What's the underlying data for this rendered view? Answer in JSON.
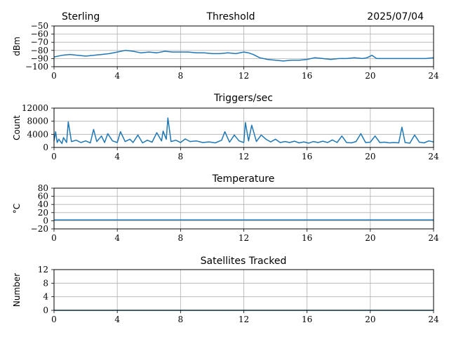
{
  "header": {
    "station": "Sterling",
    "date": "2025/07/04"
  },
  "colors": {
    "series": "#1f77b4",
    "grid": "#b0b0b0"
  },
  "chart_data": [
    {
      "type": "line",
      "title": "Threshold",
      "ylabel": "dBm",
      "xlabel": "",
      "xlim": [
        0,
        24
      ],
      "ylim": [
        -100,
        -50
      ],
      "xticks": [
        0,
        4,
        8,
        12,
        16,
        20,
        24
      ],
      "yticks": [
        -100,
        -90,
        -80,
        -70,
        -60,
        -50
      ],
      "ytick_labels": [
        "−100",
        "−90",
        "−80",
        "−70",
        "−60",
        "−50"
      ],
      "grid": true,
      "series": [
        {
          "x": [
            0,
            0.5,
            1,
            1.5,
            2,
            2.5,
            3,
            3.5,
            4,
            4.5,
            5,
            5.5,
            6,
            6.5,
            7,
            7.5,
            8,
            8.5,
            9,
            9.5,
            10,
            10.5,
            11,
            11.5,
            12,
            12.3,
            12.6,
            13,
            13.5,
            14,
            14.5,
            15,
            15.5,
            16,
            16.5,
            17,
            17.5,
            18,
            18.5,
            19,
            19.5,
            19.8,
            20.1,
            20.4,
            21,
            21.5,
            22,
            22.5,
            23,
            23.5,
            24
          ],
          "values": [
            -88,
            -86,
            -85,
            -86,
            -87,
            -86,
            -85,
            -84,
            -82,
            -80,
            -81,
            -83,
            -82,
            -83,
            -81,
            -82,
            -82,
            -82,
            -83,
            -83,
            -84,
            -84,
            -83,
            -84,
            -82,
            -83,
            -85,
            -89,
            -91,
            -92,
            -93,
            -92,
            -92,
            -91,
            -89,
            -90,
            -91,
            -90,
            -90,
            -89,
            -90,
            -89,
            -86,
            -90,
            -90,
            -90,
            -90,
            -90,
            -90,
            -90,
            -89
          ]
        }
      ]
    },
    {
      "type": "line",
      "title": "Triggers/sec",
      "ylabel": "Count",
      "xlabel": "",
      "xlim": [
        0,
        24
      ],
      "ylim": [
        0,
        12000
      ],
      "xticks": [
        0,
        4,
        8,
        12,
        16,
        20,
        24
      ],
      "yticks": [
        0,
        4000,
        8000,
        12000
      ],
      "ytick_labels": [
        "0",
        "4000",
        "8000",
        "12000"
      ],
      "grid": true,
      "series": [
        {
          "x": [
            0,
            0.1,
            0.2,
            0.3,
            0.5,
            0.6,
            0.8,
            0.9,
            1.1,
            1.4,
            1.7,
            2.0,
            2.3,
            2.5,
            2.7,
            3.0,
            3.2,
            3.4,
            3.7,
            4.0,
            4.2,
            4.5,
            4.8,
            5.0,
            5.3,
            5.6,
            5.9,
            6.2,
            6.5,
            6.8,
            6.9,
            7.1,
            7.2,
            7.4,
            7.7,
            8.0,
            8.3,
            8.6,
            9.0,
            9.4,
            9.8,
            10.2,
            10.6,
            10.8,
            11.1,
            11.4,
            11.7,
            12.0,
            12.1,
            12.3,
            12.5,
            12.8,
            13.1,
            13.4,
            13.7,
            14.0,
            14.3,
            14.6,
            14.9,
            15.2,
            15.5,
            15.8,
            16.1,
            16.4,
            16.7,
            17.0,
            17.3,
            17.6,
            17.9,
            18.2,
            18.5,
            18.8,
            19.1,
            19.4,
            19.7,
            20.0,
            20.3,
            20.6,
            20.9,
            21.2,
            21.5,
            21.8,
            22.0,
            22.2,
            22.5,
            22.8,
            23.1,
            23.4,
            23.7,
            24.0
          ],
          "values": [
            2000,
            4800,
            1500,
            2500,
            1200,
            3000,
            1500,
            7800,
            1800,
            2200,
            1500,
            2000,
            1400,
            5500,
            1800,
            3500,
            1500,
            4200,
            2000,
            1500,
            4800,
            1800,
            2500,
            1500,
            3800,
            1400,
            2200,
            1600,
            4500,
            2000,
            5000,
            2500,
            9000,
            1800,
            2200,
            1500,
            2600,
            1800,
            2000,
            1500,
            1700,
            1400,
            2200,
            4800,
            1600,
            3800,
            2000,
            1500,
            7600,
            2000,
            6800,
            1800,
            3800,
            2500,
            1700,
            2500,
            1500,
            1800,
            1500,
            1900,
            1400,
            1700,
            1300,
            1800,
            1500,
            1900,
            1500,
            2300,
            1500,
            3500,
            1500,
            1400,
            1800,
            4200,
            1500,
            1600,
            3500,
            1500,
            1600,
            1400,
            1500,
            1400,
            6200,
            1500,
            1300,
            3800,
            1600,
            1400,
            2000,
            1700
          ]
        }
      ]
    },
    {
      "type": "line",
      "title": "Temperature",
      "ylabel": "°C",
      "xlabel": "",
      "xlim": [
        0,
        24
      ],
      "ylim": [
        -20,
        80
      ],
      "xticks": [
        0,
        4,
        8,
        12,
        16,
        20,
        24
      ],
      "yticks": [
        -20,
        0,
        20,
        40,
        60,
        80
      ],
      "ytick_labels": [
        "−20",
        "0",
        "20",
        "40",
        "60",
        "80"
      ],
      "grid": true,
      "series": [
        {
          "x": [
            0,
            24
          ],
          "values": [
            2,
            2
          ]
        }
      ]
    },
    {
      "type": "line",
      "title": "Satellites Tracked",
      "ylabel": "Number",
      "xlabel": "",
      "xlim": [
        0,
        24
      ],
      "ylim": [
        0,
        12
      ],
      "xticks": [
        0,
        4,
        8,
        12,
        16,
        20,
        24
      ],
      "yticks": [
        0,
        4,
        8,
        12
      ],
      "ytick_labels": [
        "0",
        "4",
        "8",
        "12"
      ],
      "grid": true,
      "series": [
        {
          "x": [
            0,
            24
          ],
          "values": [
            0,
            0
          ]
        }
      ]
    }
  ]
}
